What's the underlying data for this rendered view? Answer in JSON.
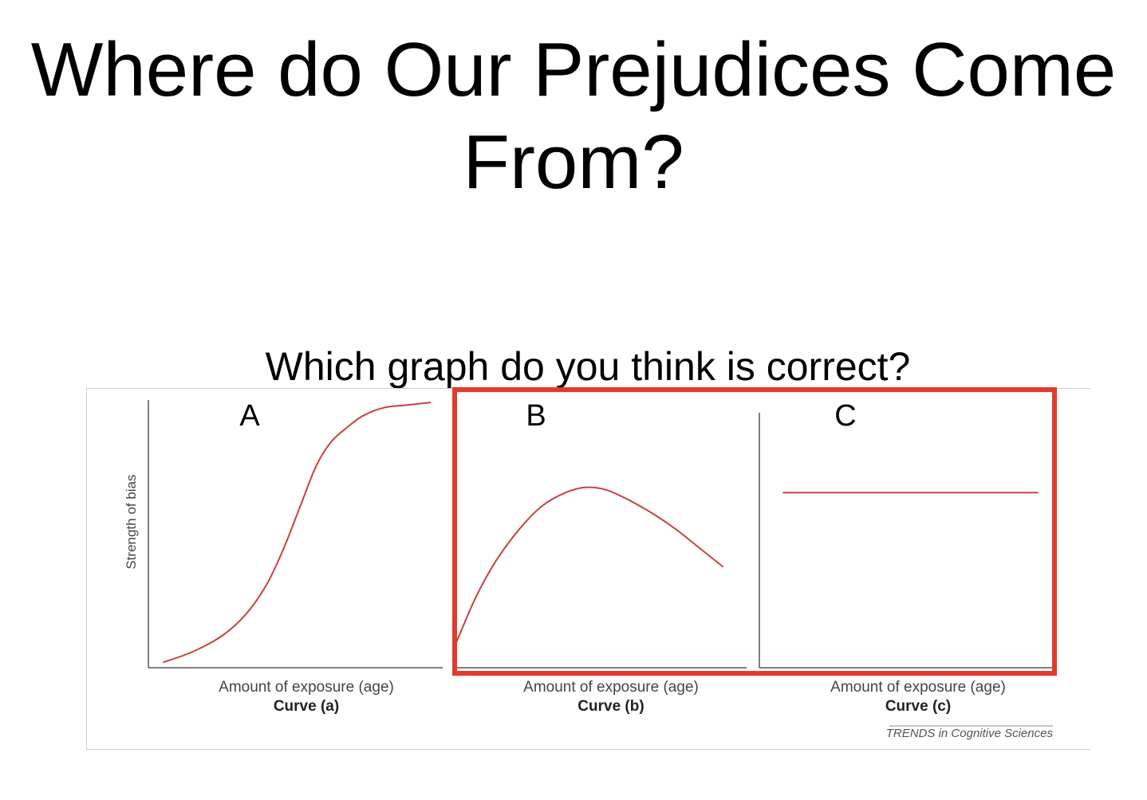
{
  "slide": {
    "title_line1": "Where do Our Prejudices Come",
    "title_line2": "From?",
    "question": "Which graph do you think is correct?"
  },
  "figure": {
    "source": "TRENDS in Cognitive Sciences",
    "ylabel": "Strength of bias",
    "xlabel": "Amount of exposure (age)",
    "highlighted_panel": "B",
    "colors": {
      "curve": "#c8433c",
      "axis": "#555555",
      "highlight": "#e23b2e"
    }
  },
  "chart_data": [
    {
      "type": "line",
      "panel_letter": "A",
      "title": "Curve (a)",
      "xlabel": "Amount of exposure (age)",
      "ylabel": "Strength of bias",
      "xlim": [
        0,
        1
      ],
      "ylim": [
        0,
        1
      ],
      "x": [
        0.05,
        0.15,
        0.25,
        0.33,
        0.4,
        0.46,
        0.52,
        0.57,
        0.62,
        0.68,
        0.73,
        0.8,
        0.88,
        0.96
      ],
      "y": [
        0.02,
        0.06,
        0.12,
        0.2,
        0.31,
        0.45,
        0.62,
        0.76,
        0.85,
        0.91,
        0.95,
        0.98,
        0.99,
        1.0
      ]
    },
    {
      "type": "line",
      "panel_letter": "B",
      "title": "Curve (b)",
      "xlabel": "Amount of exposure (age)",
      "ylabel": "",
      "xlim": [
        0,
        1
      ],
      "ylim": [
        0,
        1
      ],
      "x": [
        0.0,
        0.07,
        0.14,
        0.22,
        0.3,
        0.38,
        0.45,
        0.52,
        0.6,
        0.68,
        0.76,
        0.84,
        0.92
      ],
      "y": [
        0.08,
        0.26,
        0.4,
        0.52,
        0.61,
        0.66,
        0.68,
        0.67,
        0.63,
        0.58,
        0.52,
        0.45,
        0.38
      ]
    },
    {
      "type": "line",
      "panel_letter": "C",
      "title": "Curve (c)",
      "xlabel": "Amount of exposure (age)",
      "ylabel": "",
      "xlim": [
        0,
        1
      ],
      "ylim": [
        0,
        1
      ],
      "x": [
        0.08,
        0.95
      ],
      "y": [
        0.66,
        0.66
      ]
    }
  ]
}
